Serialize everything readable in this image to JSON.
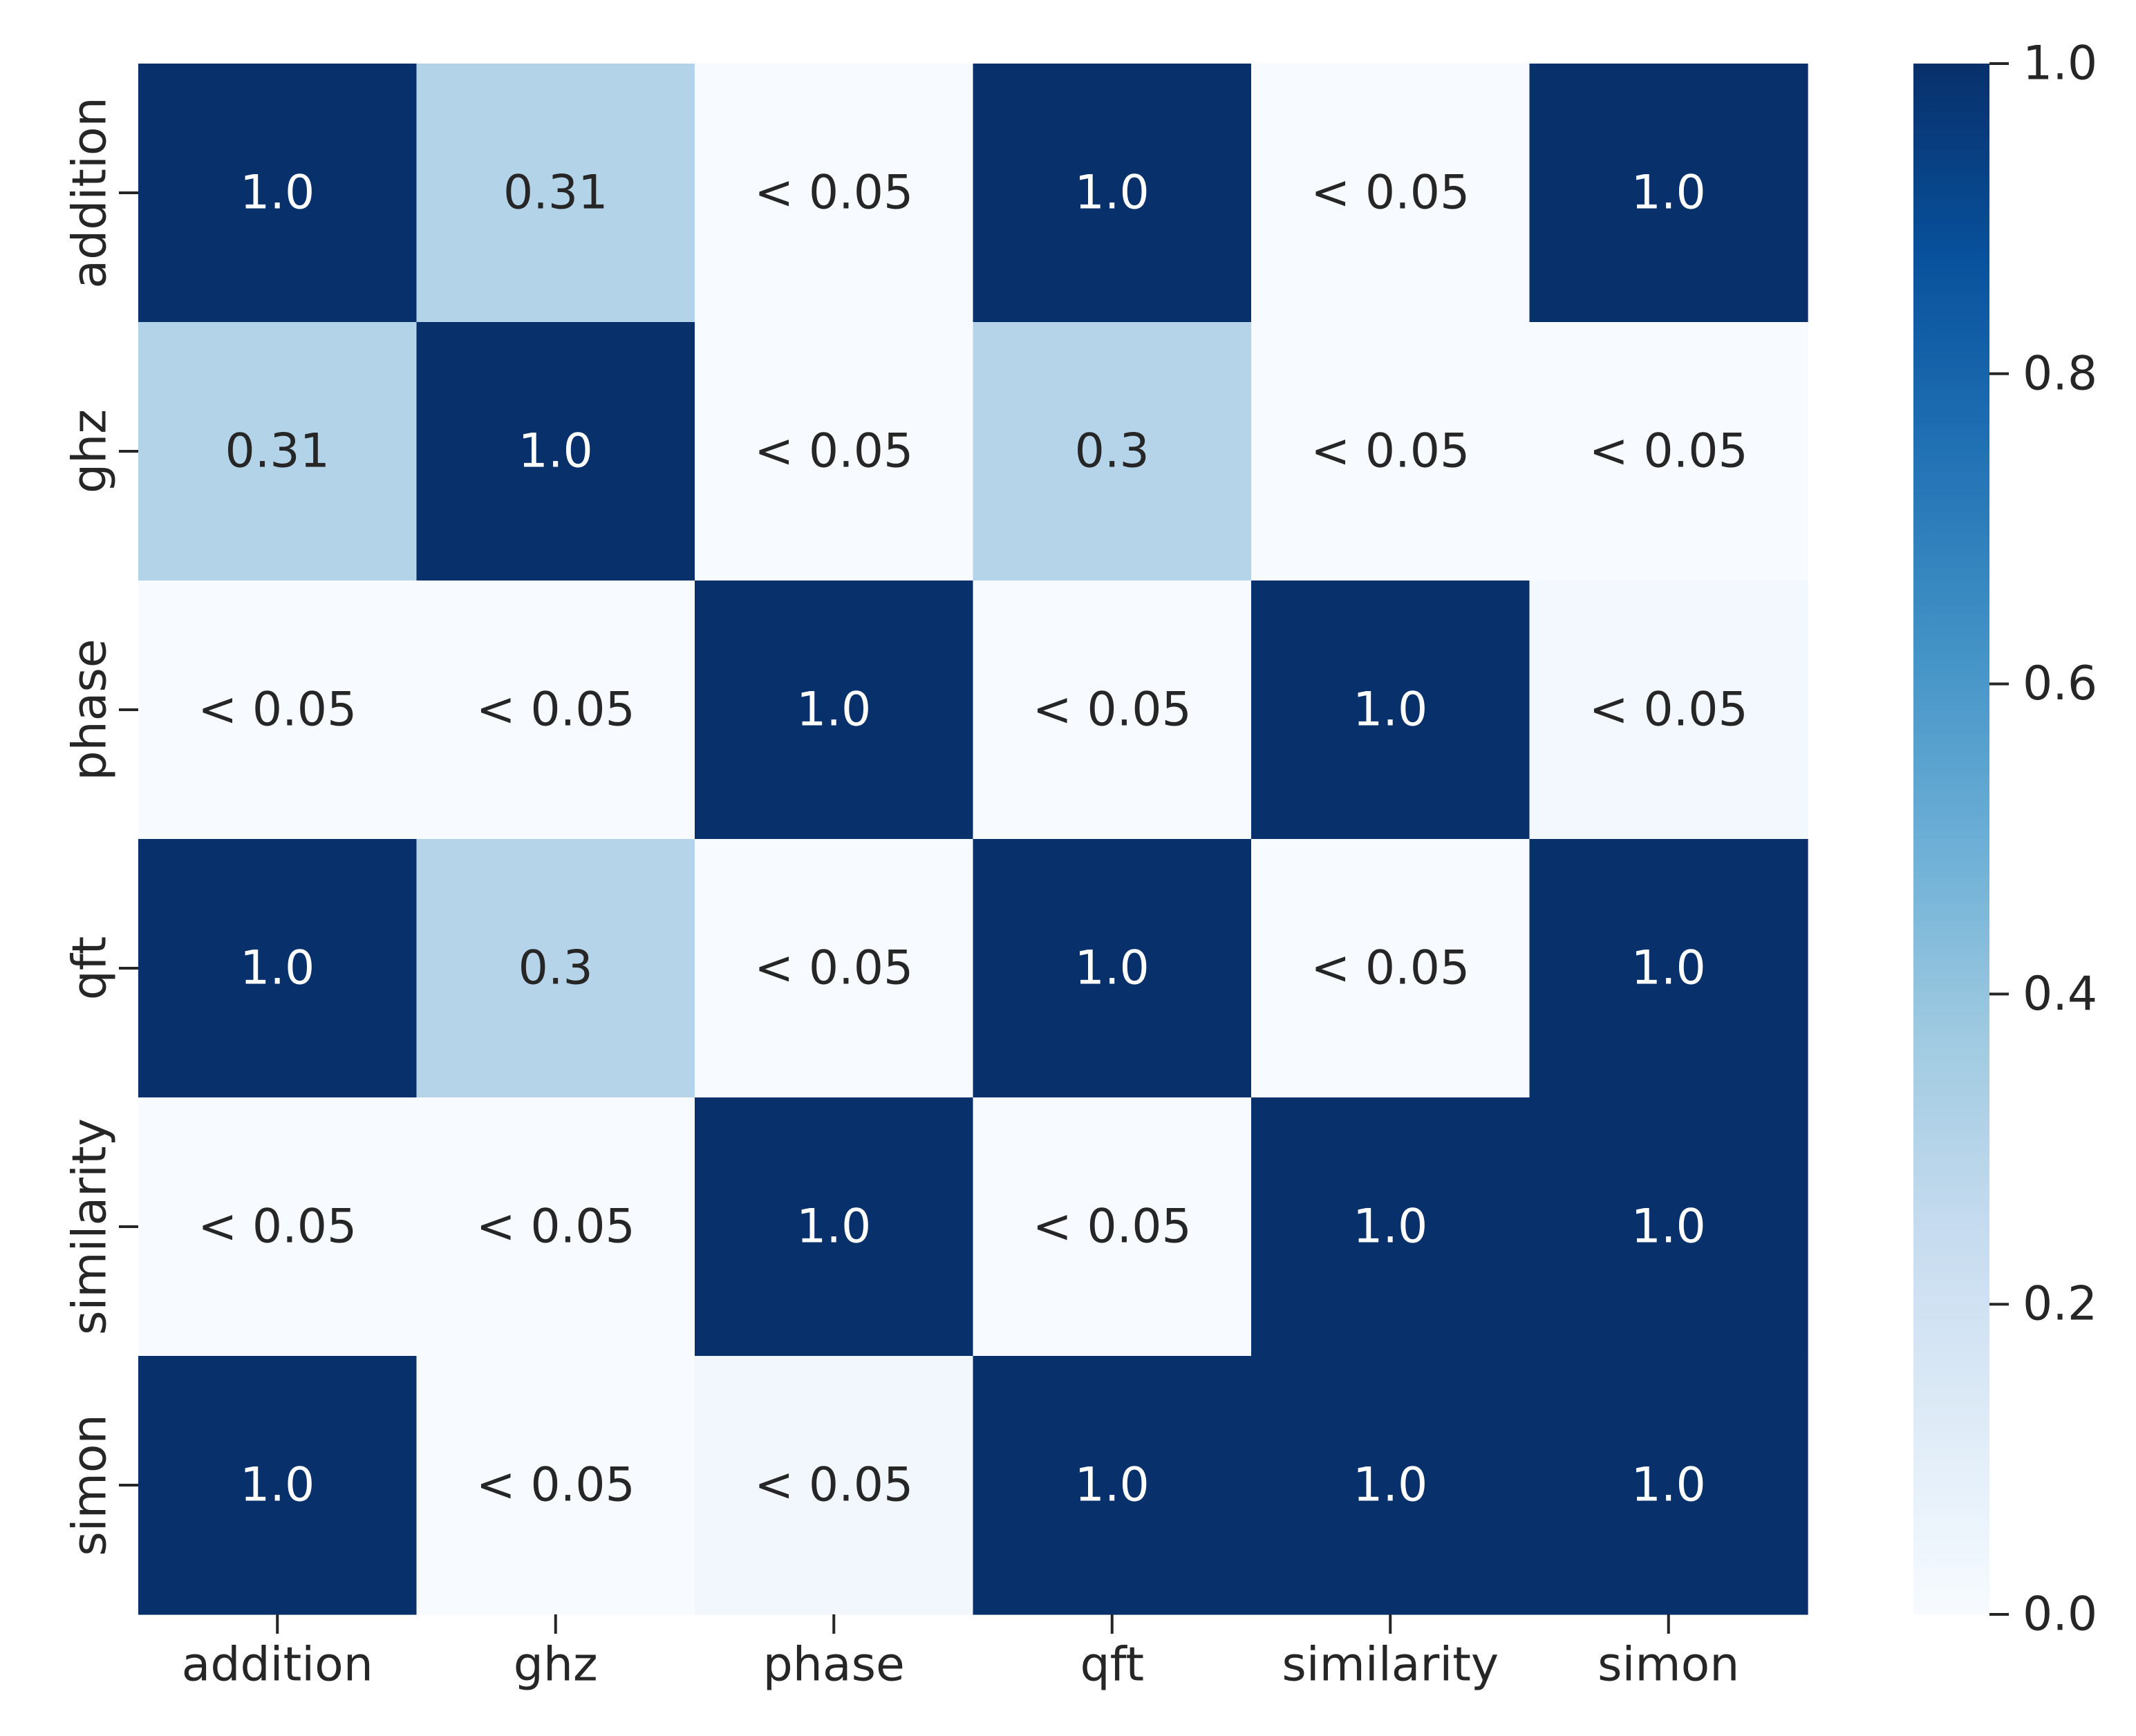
{
  "chart_data": {
    "type": "heatmap",
    "title": "",
    "xlabel": "",
    "ylabel": "",
    "x_categories": [
      "addition",
      "ghz",
      "phase",
      "qft",
      "similarity",
      "simon"
    ],
    "y_categories": [
      "addition",
      "ghz",
      "phase",
      "qft",
      "similarity",
      "simon"
    ],
    "values": [
      [
        1.0,
        0.31,
        0.0,
        1.0,
        0.0,
        1.0
      ],
      [
        0.31,
        1.0,
        0.0,
        0.3,
        0.0,
        0.0
      ],
      [
        0.0,
        0.0,
        1.0,
        0.0,
        1.0,
        0.02
      ],
      [
        1.0,
        0.3,
        0.0,
        1.0,
        0.0,
        1.0
      ],
      [
        0.0,
        0.0,
        1.0,
        0.0,
        1.0,
        1.0
      ],
      [
        1.0,
        0.0,
        0.03,
        1.0,
        1.0,
        1.0
      ]
    ],
    "annotations": [
      [
        "1.0",
        "0.31",
        "< 0.05",
        "1.0",
        "< 0.05",
        "1.0"
      ],
      [
        "0.31",
        "1.0",
        "< 0.05",
        "0.3",
        "< 0.05",
        "< 0.05"
      ],
      [
        "< 0.05",
        "< 0.05",
        "1.0",
        "< 0.05",
        "1.0",
        "< 0.05"
      ],
      [
        "1.0",
        "0.3",
        "< 0.05",
        "1.0",
        "< 0.05",
        "1.0"
      ],
      [
        "< 0.05",
        "< 0.05",
        "1.0",
        "< 0.05",
        "1.0",
        "1.0"
      ],
      [
        "1.0",
        "< 0.05",
        "< 0.05",
        "1.0",
        "1.0",
        "1.0"
      ]
    ],
    "colorbar": {
      "range": [
        0.0,
        1.0
      ],
      "ticks": [
        0.0,
        0.2,
        0.4,
        0.6,
        0.8,
        1.0
      ],
      "tick_labels": [
        "0.0",
        "0.2",
        "0.4",
        "0.6",
        "0.8",
        "1.0"
      ],
      "colormap": "Blues"
    },
    "grid": false,
    "legend": "colorbar-right"
  },
  "colors": {
    "text_dark": "#262626",
    "text_light": "#ffffff",
    "tick": "#262626"
  }
}
